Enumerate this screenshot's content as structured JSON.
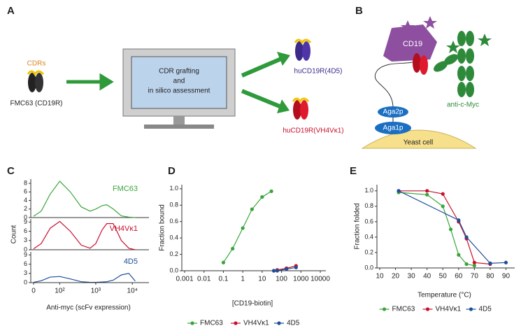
{
  "panel_a": {
    "label": "A",
    "cdrs": "CDRs",
    "parent": "FMC63 (CD19R)",
    "process": [
      "CDR grafting",
      "and",
      "in silico assessment"
    ],
    "outputs": [
      "huCD19R(4D5)",
      "huCD19R(VH4Vκ1)"
    ]
  },
  "panel_b": {
    "label": "B",
    "antigen": "CD19",
    "antibody": "anti-c-Myc",
    "aga2p": "Aga2p",
    "aga1p": "Aga1p",
    "cell": "Yeast cell"
  },
  "chart_data": [
    {
      "type": "line",
      "label": "C",
      "ylabel": "Count",
      "xlabel": "Anti-myc (scFv expression)",
      "xscale": "biexponential",
      "xlim": [
        0,
        20000
      ],
      "xticks": [
        0,
        {
          "value": 100,
          "label": "10²"
        },
        {
          "value": 1000,
          "label": "10³"
        },
        {
          "value": 10000,
          "label": "10⁴"
        }
      ],
      "x": [
        0,
        20,
        50,
        100,
        200,
        400,
        700,
        1000,
        1500,
        2000,
        3000,
        5000,
        8000,
        12000
      ],
      "series": [
        {
          "name": "FMC63",
          "color": "#3aa53a",
          "ylim": [
            0,
            9
          ],
          "yticks": [
            0,
            2,
            4,
            6,
            8
          ],
          "values": [
            0.3,
            1.5,
            5.5,
            8.5,
            6,
            2.5,
            1.5,
            2,
            2.8,
            3,
            2,
            0.4,
            0.1,
            0
          ]
        },
        {
          "name": "VH4Vκ1",
          "color": "#c8102e",
          "ylim": [
            0,
            10
          ],
          "yticks": [
            0,
            3,
            6,
            9
          ],
          "values": [
            0.3,
            2,
            7,
            9.2,
            6,
            1.5,
            0.5,
            2,
            6.5,
            8.5,
            8.5,
            3,
            0.5,
            0
          ]
        },
        {
          "name": "4D5",
          "color": "#1f4e99",
          "ylim": [
            0,
            10
          ],
          "yticks": [
            0,
            3,
            6,
            9
          ],
          "values": [
            0.1,
            0.6,
            1.8,
            2,
            1.2,
            0.3,
            0.1,
            0.1,
            0.2,
            0.3,
            0.8,
            2.5,
            3,
            0.5
          ]
        }
      ]
    },
    {
      "type": "scatter",
      "label": "D",
      "ylabel": "Fraction bound",
      "xlabel": "[CD19-biotin]",
      "xscale": "log",
      "xlim": [
        0.001,
        10000
      ],
      "xticks": [
        0.001,
        0.01,
        0.1,
        1,
        10,
        100,
        1000,
        10000
      ],
      "ylim": [
        0,
        1.05
      ],
      "yticks": [
        {
          "value": 0,
          "label": "0.0"
        },
        0.2,
        0.4,
        0.6,
        0.8,
        {
          "value": 1,
          "label": "1.0"
        }
      ],
      "legend": "bottom",
      "series": [
        {
          "name": "FMC63",
          "color": "#3aa53a",
          "x": [
            0.1,
            0.3,
            1,
            3,
            10,
            30
          ],
          "values": [
            0.1,
            0.27,
            0.52,
            0.75,
            0.9,
            0.97
          ]
        },
        {
          "name": "VH4Vκ1",
          "color": "#c8102e",
          "x": [
            40,
            60,
            180,
            560
          ],
          "values": [
            0,
            0.01,
            0.03,
            0.06
          ]
        },
        {
          "name": "4D5",
          "color": "#1f4e99",
          "x": [
            40,
            60,
            180,
            560
          ],
          "values": [
            0,
            0,
            0.02,
            0.04
          ]
        }
      ]
    },
    {
      "type": "scatter",
      "label": "E",
      "ylabel": "Fraction folded",
      "xlabel": "Temperature (°C)",
      "xlim": [
        10,
        92
      ],
      "xticks": [
        10,
        20,
        30,
        40,
        50,
        60,
        70,
        80,
        90
      ],
      "ylim": [
        0,
        1.08
      ],
      "yticks": [
        {
          "value": 0,
          "label": "0.0"
        },
        0.2,
        0.4,
        0.6,
        0.8,
        {
          "value": 1,
          "label": "1.0"
        }
      ],
      "legend": "bottom",
      "series": [
        {
          "name": "FMC63",
          "color": "#3aa53a",
          "x": [
            22,
            40,
            50,
            55,
            60,
            65,
            70
          ],
          "values": [
            0.98,
            0.95,
            0.8,
            0.5,
            0.17,
            0.05,
            0.03
          ]
        },
        {
          "name": "VH4Vκ1",
          "color": "#c8102e",
          "x": [
            22,
            40,
            50,
            60,
            65,
            70,
            80
          ],
          "values": [
            1,
            1,
            0.96,
            0.6,
            0.38,
            0.07,
            0.05
          ]
        },
        {
          "name": "4D5",
          "color": "#1f4e99",
          "x": [
            22,
            60,
            65,
            80,
            90
          ],
          "values": [
            1,
            0.62,
            0.4,
            0.06,
            0.07
          ]
        }
      ]
    }
  ]
}
